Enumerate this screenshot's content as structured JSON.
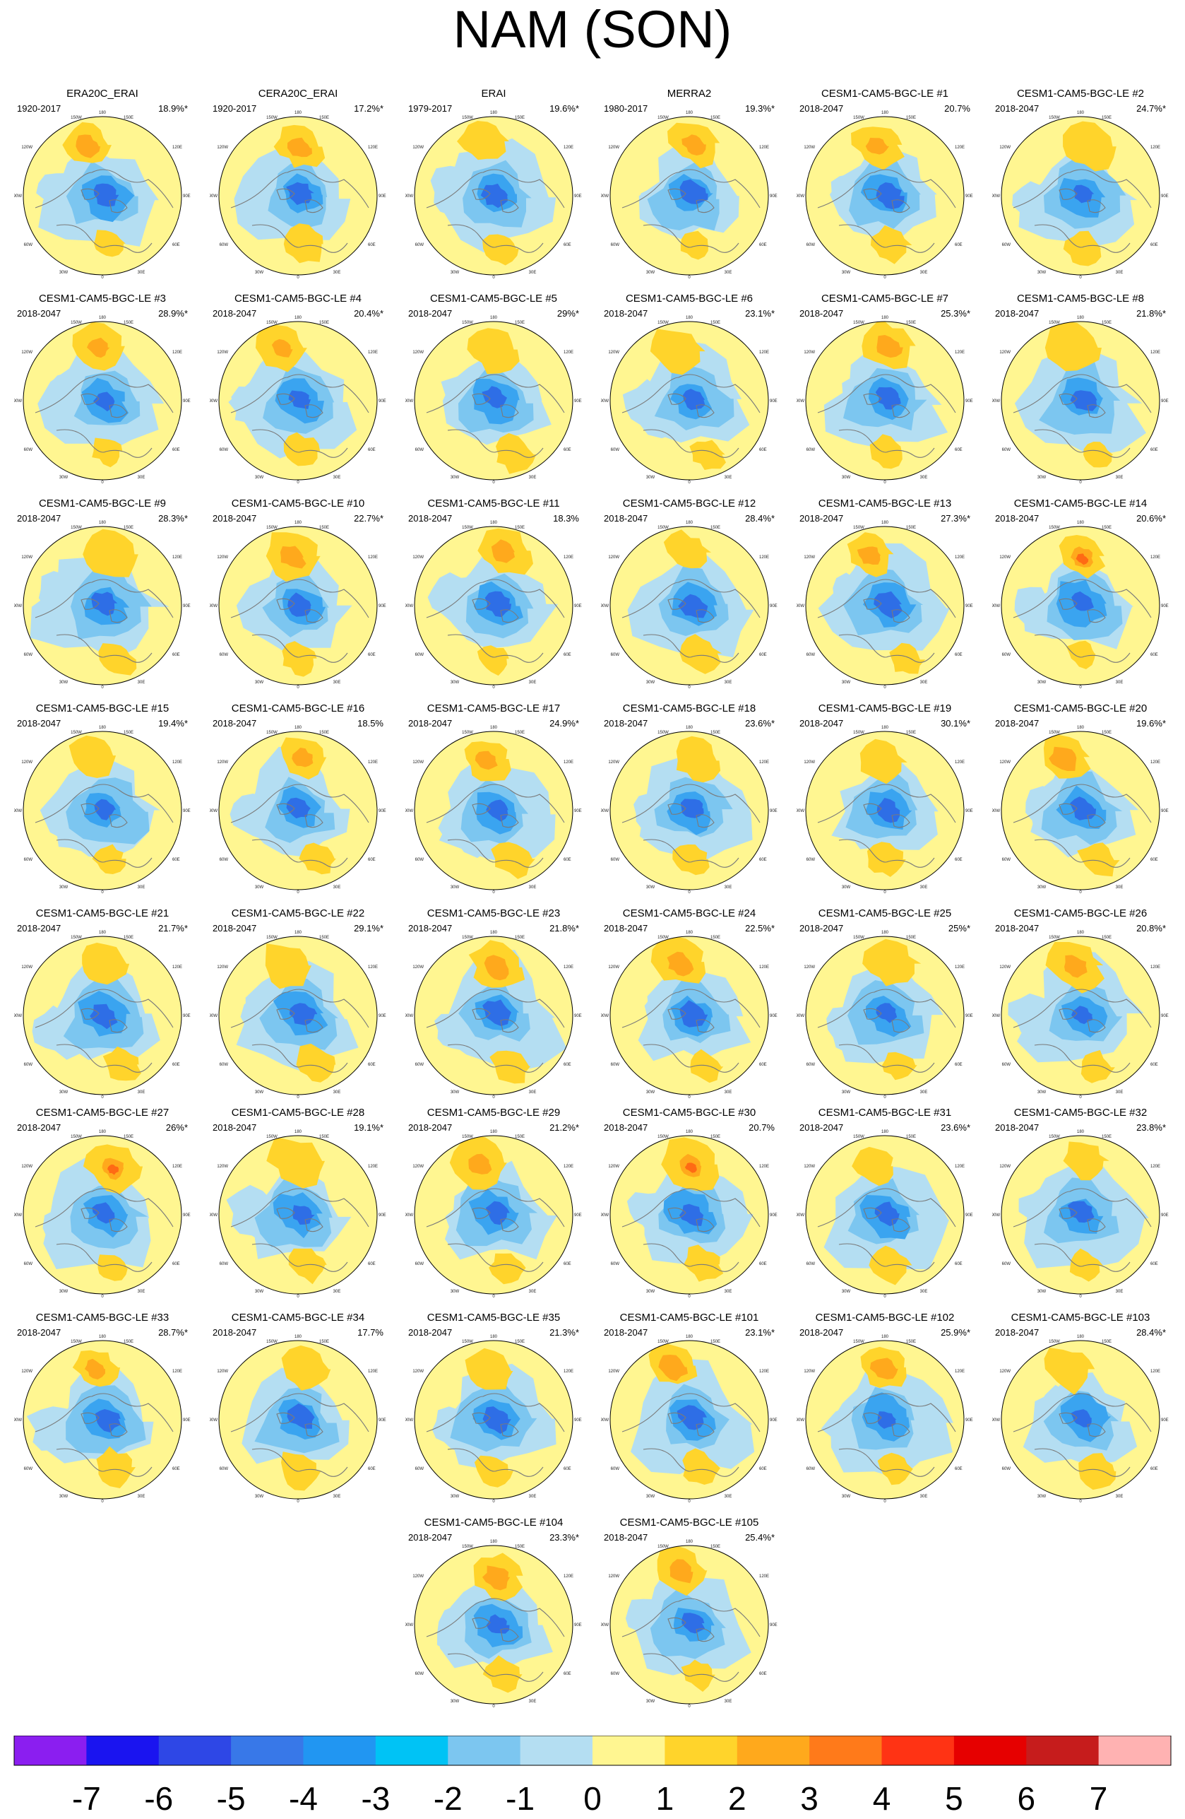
{
  "title": "NAM (SON)",
  "panels": [
    {
      "name": "ERA20C_ERAI",
      "period": "1920-2017",
      "pct": "18.9%*"
    },
    {
      "name": "CERA20C_ERAI",
      "period": "1920-2017",
      "pct": "17.2%*"
    },
    {
      "name": "ERAI",
      "period": "1979-2017",
      "pct": "19.6%*"
    },
    {
      "name": "MERRA2",
      "period": "1980-2017",
      "pct": "19.3%*"
    },
    {
      "name": "CESM1-CAM5-BGC-LE #1",
      "period": "2018-2047",
      "pct": "20.7%"
    },
    {
      "name": "CESM1-CAM5-BGC-LE #2",
      "period": "2018-2047",
      "pct": "24.7%*"
    },
    {
      "name": "CESM1-CAM5-BGC-LE #3",
      "period": "2018-2047",
      "pct": "28.9%*"
    },
    {
      "name": "CESM1-CAM5-BGC-LE #4",
      "period": "2018-2047",
      "pct": "20.4%*"
    },
    {
      "name": "CESM1-CAM5-BGC-LE #5",
      "period": "2018-2047",
      "pct": "29%*"
    },
    {
      "name": "CESM1-CAM5-BGC-LE #6",
      "period": "2018-2047",
      "pct": "23.1%*"
    },
    {
      "name": "CESM1-CAM5-BGC-LE #7",
      "period": "2018-2047",
      "pct": "25.3%*"
    },
    {
      "name": "CESM1-CAM5-BGC-LE #8",
      "period": "2018-2047",
      "pct": "21.8%*"
    },
    {
      "name": "CESM1-CAM5-BGC-LE #9",
      "period": "2018-2047",
      "pct": "28.3%*"
    },
    {
      "name": "CESM1-CAM5-BGC-LE #10",
      "period": "2018-2047",
      "pct": "22.7%*"
    },
    {
      "name": "CESM1-CAM5-BGC-LE #11",
      "period": "2018-2047",
      "pct": "18.3%"
    },
    {
      "name": "CESM1-CAM5-BGC-LE #12",
      "period": "2018-2047",
      "pct": "28.4%*"
    },
    {
      "name": "CESM1-CAM5-BGC-LE #13",
      "period": "2018-2047",
      "pct": "27.3%*"
    },
    {
      "name": "CESM1-CAM5-BGC-LE #14",
      "period": "2018-2047",
      "pct": "20.6%*"
    },
    {
      "name": "CESM1-CAM5-BGC-LE #15",
      "period": "2018-2047",
      "pct": "19.4%*"
    },
    {
      "name": "CESM1-CAM5-BGC-LE #16",
      "period": "2018-2047",
      "pct": "18.5%"
    },
    {
      "name": "CESM1-CAM5-BGC-LE #17",
      "period": "2018-2047",
      "pct": "24.9%*"
    },
    {
      "name": "CESM1-CAM5-BGC-LE #18",
      "period": "2018-2047",
      "pct": "23.6%*"
    },
    {
      "name": "CESM1-CAM5-BGC-LE #19",
      "period": "2018-2047",
      "pct": "30.1%*"
    },
    {
      "name": "CESM1-CAM5-BGC-LE #20",
      "period": "2018-2047",
      "pct": "19.6%*"
    },
    {
      "name": "CESM1-CAM5-BGC-LE #21",
      "period": "2018-2047",
      "pct": "21.7%*"
    },
    {
      "name": "CESM1-CAM5-BGC-LE #22",
      "period": "2018-2047",
      "pct": "29.1%*"
    },
    {
      "name": "CESM1-CAM5-BGC-LE #23",
      "period": "2018-2047",
      "pct": "21.8%*"
    },
    {
      "name": "CESM1-CAM5-BGC-LE #24",
      "period": "2018-2047",
      "pct": "22.5%*"
    },
    {
      "name": "CESM1-CAM5-BGC-LE #25",
      "period": "2018-2047",
      "pct": "25%*"
    },
    {
      "name": "CESM1-CAM5-BGC-LE #26",
      "period": "2018-2047",
      "pct": "20.8%*"
    },
    {
      "name": "CESM1-CAM5-BGC-LE #27",
      "period": "2018-2047",
      "pct": "26%*"
    },
    {
      "name": "CESM1-CAM5-BGC-LE #28",
      "period": "2018-2047",
      "pct": "19.1%*"
    },
    {
      "name": "CESM1-CAM5-BGC-LE #29",
      "period": "2018-2047",
      "pct": "21.2%*"
    },
    {
      "name": "CESM1-CAM5-BGC-LE #30",
      "period": "2018-2047",
      "pct": "20.7%"
    },
    {
      "name": "CESM1-CAM5-BGC-LE #31",
      "period": "2018-2047",
      "pct": "23.6%*"
    },
    {
      "name": "CESM1-CAM5-BGC-LE #32",
      "period": "2018-2047",
      "pct": "23.8%*"
    },
    {
      "name": "CESM1-CAM5-BGC-LE #33",
      "period": "2018-2047",
      "pct": "28.7%*"
    },
    {
      "name": "CESM1-CAM5-BGC-LE #34",
      "period": "2018-2047",
      "pct": "17.7%"
    },
    {
      "name": "CESM1-CAM5-BGC-LE #35",
      "period": "2018-2047",
      "pct": "21.3%*"
    },
    {
      "name": "CESM1-CAM5-BGC-LE #101",
      "period": "2018-2047",
      "pct": "23.1%*"
    },
    {
      "name": "CESM1-CAM5-BGC-LE #102",
      "period": "2018-2047",
      "pct": "25.9%*"
    },
    {
      "name": "CESM1-CAM5-BGC-LE #103",
      "period": "2018-2047",
      "pct": "28.4%*"
    },
    {
      "name": "CESM1-CAM5-BGC-LE #104",
      "period": "2018-2047",
      "pct": "23.3%*"
    },
    {
      "name": "CESM1-CAM5-BGC-LE #105",
      "period": "2018-2047",
      "pct": "25.4%*"
    }
  ],
  "map_labels": {
    "top": "180",
    "top_left": "150W",
    "top_right": "150E",
    "upper_left": "120W",
    "upper_right": "120E",
    "left": "90W",
    "right": "90E",
    "lower_left": "60W",
    "lower_right": "60E",
    "bottom_left": "30W",
    "bottom_right": "30E",
    "bottom": "0"
  },
  "colorbar": {
    "labels": [
      "-7",
      "-6",
      "-5",
      "-4",
      "-3",
      "-2",
      "-1",
      "0",
      "1",
      "2",
      "3",
      "4",
      "5",
      "6",
      "7"
    ],
    "colors": [
      "#8b1ef0",
      "#1a14f0",
      "#2e47e6",
      "#3878e8",
      "#2196f2",
      "#00c3f5",
      "#7cc6f0",
      "#b4def2",
      "#fff691",
      "#ffd42b",
      "#ffa91c",
      "#ff7a1a",
      "#ff3314",
      "#e60000",
      "#c61c1c",
      "#ffb2b2"
    ]
  },
  "map_colors": {
    "ocean_bg": "#fff691",
    "neg1": "#b4def2",
    "neg2": "#7cc6f0",
    "neg3": "#3aa4f0",
    "neg4": "#2e6ee6",
    "neg5": "#2a40e0",
    "pos1": "#ffd42b",
    "pos2": "#ffa91c",
    "pos3": "#ff6a14",
    "coast": "#7a7a7a"
  }
}
